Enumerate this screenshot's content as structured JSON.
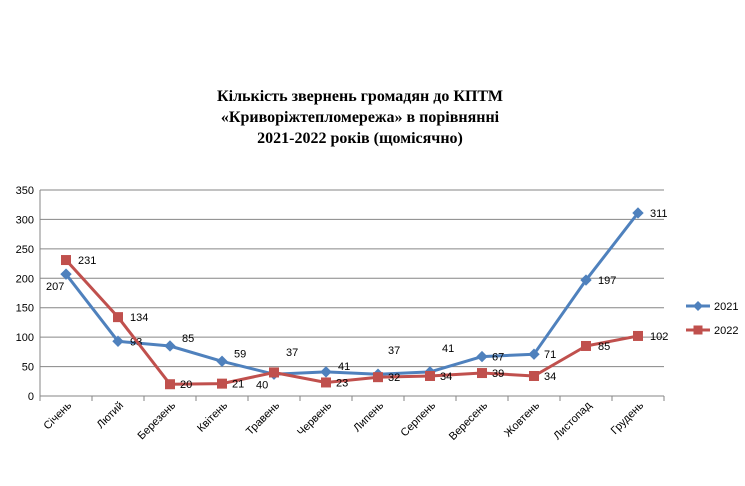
{
  "chart_data": {
    "type": "line",
    "title_lines": [
      "Кількість звернень громадян до КПТМ",
      "«Криворіжтепломережа» в порівнянні",
      "2021-2022 років (щомісячно)"
    ],
    "categories": [
      "Січень",
      "Лютий",
      "Березень",
      "Квітень",
      "Травень",
      "Червень",
      "Липень",
      "Серпень",
      "Вересень",
      "Жовтень",
      "Листопад",
      "Грудень"
    ],
    "series": [
      {
        "name": "2021",
        "color": "#4f81bd",
        "marker": "diamond",
        "values": [
          207,
          93,
          85,
          59,
          37,
          41,
          37,
          41,
          67,
          71,
          197,
          311
        ]
      },
      {
        "name": "2022",
        "color": "#c0504d",
        "marker": "square",
        "values": [
          231,
          134,
          20,
          21,
          40,
          23,
          32,
          34,
          39,
          34,
          85,
          102
        ]
      }
    ],
    "ylim": [
      0,
      350
    ],
    "yticks": [
      0,
      50,
      100,
      150,
      200,
      250,
      300,
      350
    ],
    "grid": true,
    "legend_position": "right"
  }
}
